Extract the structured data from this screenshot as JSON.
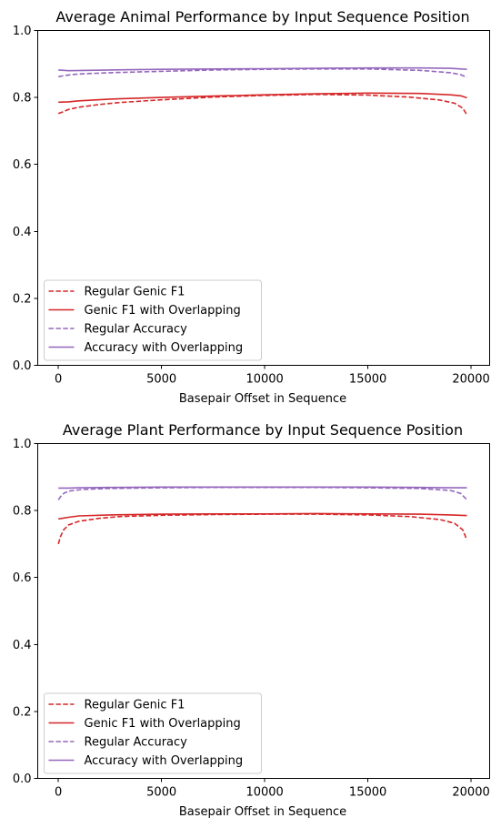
{
  "chart_data": [
    {
      "type": "line",
      "title": "Average Animal Performance by Input Sequence Position",
      "xlabel": "Basepair Offset in Sequence",
      "ylabel": "",
      "xlim": [
        -1000,
        20900
      ],
      "ylim": [
        0,
        1
      ],
      "xticks": [
        0,
        5000,
        10000,
        15000,
        20000
      ],
      "xtick_labels": [
        "0",
        "5000",
        "10000",
        "15000",
        "20000"
      ],
      "yticks": [
        0.0,
        0.2,
        0.4,
        0.6,
        0.8,
        1.0
      ],
      "ytick_labels": [
        "0.0",
        "0.2",
        "0.4",
        "0.6",
        "0.8",
        "1.0"
      ],
      "grid": false,
      "legend_position": "lower-left",
      "series": [
        {
          "name": "Regular Genic F1",
          "color": "#d62728",
          "dash": "dashed",
          "x": [
            0,
            250,
            500,
            1000,
            2000,
            3000,
            5000,
            7500,
            10000,
            12500,
            15000,
            17000,
            18500,
            19200,
            19600,
            19800
          ],
          "y": [
            0.752,
            0.758,
            0.764,
            0.771,
            0.779,
            0.785,
            0.793,
            0.801,
            0.806,
            0.809,
            0.807,
            0.801,
            0.792,
            0.783,
            0.768,
            0.748
          ]
        },
        {
          "name": "Genic F1 with Overlapping",
          "color": "#d62728",
          "dash": "solid",
          "x": [
            0,
            500,
            1000,
            2500,
            5000,
            7500,
            10000,
            12500,
            15000,
            17500,
            19000,
            19500,
            19800
          ],
          "y": [
            0.786,
            0.787,
            0.79,
            0.795,
            0.8,
            0.804,
            0.808,
            0.811,
            0.813,
            0.812,
            0.808,
            0.805,
            0.799
          ]
        },
        {
          "name": "Regular Accuracy",
          "color": "#9467bd",
          "dash": "dashed",
          "x": [
            0,
            250,
            500,
            1000,
            2500,
            5000,
            7500,
            10000,
            12500,
            15000,
            17500,
            19000,
            19500,
            19800
          ],
          "y": [
            0.862,
            0.865,
            0.867,
            0.87,
            0.874,
            0.878,
            0.882,
            0.884,
            0.885,
            0.885,
            0.881,
            0.874,
            0.868,
            0.86
          ]
        },
        {
          "name": "Accuracy with Overlapping",
          "color": "#9467bd",
          "dash": "solid",
          "x": [
            0,
            500,
            2500,
            5000,
            7500,
            10000,
            12500,
            15000,
            17500,
            19000,
            19800
          ],
          "y": [
            0.882,
            0.88,
            0.882,
            0.884,
            0.885,
            0.886,
            0.887,
            0.888,
            0.888,
            0.887,
            0.884
          ]
        }
      ]
    },
    {
      "type": "line",
      "title": "Average Plant Performance by Input Sequence Position",
      "xlabel": "Basepair Offset in Sequence",
      "ylabel": "",
      "xlim": [
        -1000,
        20900
      ],
      "ylim": [
        0,
        1
      ],
      "xticks": [
        0,
        5000,
        10000,
        15000,
        20000
      ],
      "xtick_labels": [
        "0",
        "5000",
        "10000",
        "15000",
        "20000"
      ],
      "yticks": [
        0.0,
        0.2,
        0.4,
        0.6,
        0.8,
        1.0
      ],
      "ytick_labels": [
        "0.0",
        "0.2",
        "0.4",
        "0.6",
        "0.8",
        "1.0"
      ],
      "grid": false,
      "legend_position": "lower-left",
      "series": [
        {
          "name": "Regular Genic F1",
          "color": "#d62728",
          "dash": "dashed",
          "x": [
            0,
            100,
            250,
            500,
            1000,
            2000,
            3000,
            5000,
            7500,
            10000,
            12500,
            15000,
            17000,
            18500,
            19200,
            19600,
            19800
          ],
          "y": [
            0.7,
            0.722,
            0.742,
            0.757,
            0.768,
            0.777,
            0.782,
            0.786,
            0.788,
            0.789,
            0.789,
            0.787,
            0.782,
            0.773,
            0.762,
            0.742,
            0.712
          ]
        },
        {
          "name": "Genic F1 with Overlapping",
          "color": "#d62728",
          "dash": "solid",
          "x": [
            0,
            500,
            1000,
            2500,
            5000,
            7500,
            10000,
            12500,
            15000,
            17500,
            19000,
            19800
          ],
          "y": [
            0.775,
            0.78,
            0.784,
            0.787,
            0.789,
            0.79,
            0.79,
            0.791,
            0.79,
            0.789,
            0.787,
            0.785
          ]
        },
        {
          "name": "Regular Accuracy",
          "color": "#9467bd",
          "dash": "dashed",
          "x": [
            0,
            150,
            300,
            600,
            1200,
            2500,
            5000,
            7500,
            10000,
            12500,
            15000,
            17500,
            19000,
            19500,
            19800
          ],
          "y": [
            0.832,
            0.845,
            0.853,
            0.859,
            0.863,
            0.866,
            0.868,
            0.869,
            0.869,
            0.869,
            0.868,
            0.866,
            0.86,
            0.851,
            0.832
          ]
        },
        {
          "name": "Accuracy with Overlapping",
          "color": "#9467bd",
          "dash": "solid",
          "x": [
            0,
            500,
            1000,
            2500,
            5000,
            7500,
            10000,
            12500,
            15000,
            17500,
            19000,
            19800
          ],
          "y": [
            0.867,
            0.867,
            0.868,
            0.869,
            0.87,
            0.87,
            0.87,
            0.87,
            0.87,
            0.869,
            0.868,
            0.868
          ]
        }
      ]
    }
  ]
}
